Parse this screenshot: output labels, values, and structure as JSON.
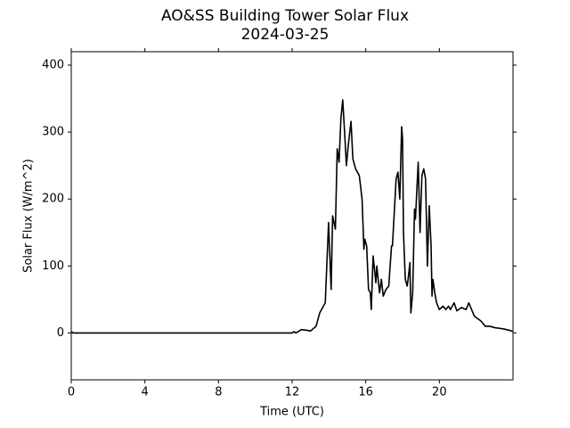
{
  "chart_data": {
    "type": "line",
    "title": "AO&SS Building Tower Solar Flux",
    "subtitle": "2024-03-25",
    "x_label": "Time (UTC)",
    "y_label": "Solar Flux (W/m^2)",
    "xlim": [
      0,
      24
    ],
    "xticks": [
      0,
      4,
      8,
      12,
      16,
      20
    ],
    "ylim": [
      -70,
      420
    ],
    "yticks": [
      0,
      100,
      200,
      300,
      400
    ],
    "grid": false,
    "series": [
      {
        "color": "#000000",
        "x": [
          0,
          0.1,
          12.0,
          12.1,
          12.2,
          12.5,
          12.8,
          13.0,
          13.3,
          13.5,
          13.7,
          13.8,
          13.98,
          14.12,
          14.2,
          14.35,
          14.45,
          14.55,
          14.65,
          14.75,
          14.85,
          14.95,
          15.05,
          15.2,
          15.3,
          15.45,
          15.65,
          15.8,
          15.9,
          15.95,
          16.05,
          16.15,
          16.25,
          16.3,
          16.4,
          16.55,
          16.6,
          16.75,
          16.85,
          16.95,
          17.1,
          17.25,
          17.4,
          17.45,
          17.65,
          17.75,
          17.85,
          17.95,
          18.0,
          18.05,
          18.15,
          18.25,
          18.3,
          18.4,
          18.45,
          18.55,
          18.65,
          18.7,
          18.85,
          18.95,
          19.05,
          19.15,
          19.25,
          19.35,
          19.45,
          19.55,
          19.6,
          19.65,
          19.75,
          19.85,
          20.0,
          20.2,
          20.35,
          20.5,
          20.6,
          20.8,
          20.95,
          21.2,
          21.45,
          21.6,
          21.75,
          21.9,
          22.25,
          22.5,
          22.75,
          23.0,
          23.5,
          23.8,
          24.0
        ],
        "values": [
          2,
          0,
          0,
          2,
          0,
          5,
          4,
          3,
          10,
          30,
          40,
          45,
          165,
          65,
          175,
          155,
          275,
          255,
          320,
          348,
          300,
          250,
          280,
          316,
          260,
          245,
          235,
          200,
          125,
          140,
          130,
          65,
          60,
          35,
          115,
          75,
          100,
          60,
          80,
          55,
          65,
          70,
          130,
          130,
          230,
          240,
          200,
          308,
          290,
          150,
          80,
          70,
          80,
          105,
          30,
          60,
          185,
          170,
          255,
          150,
          235,
          245,
          230,
          100,
          190,
          130,
          55,
          80,
          60,
          45,
          35,
          40,
          35,
          40,
          35,
          45,
          33,
          38,
          35,
          45,
          35,
          25,
          18,
          10,
          10,
          8,
          6,
          4,
          2
        ]
      }
    ]
  }
}
